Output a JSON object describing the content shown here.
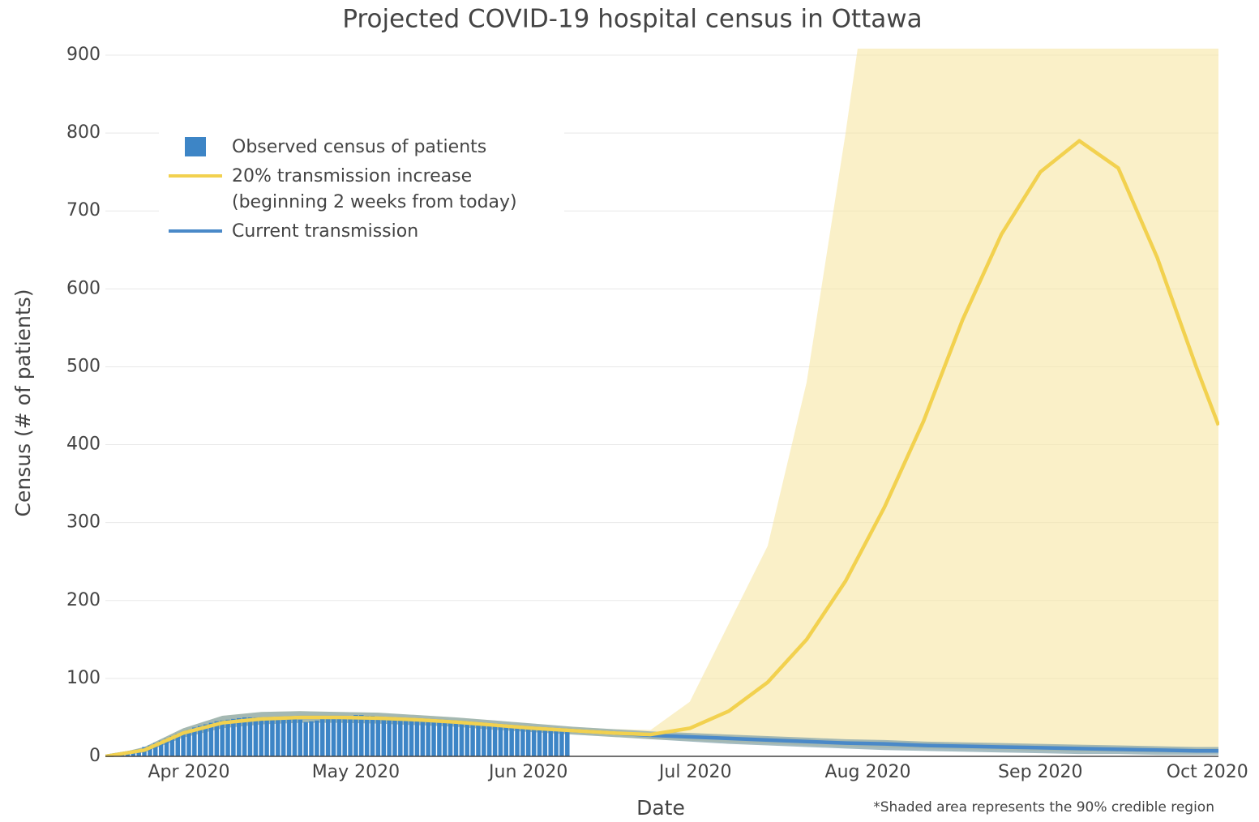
{
  "chart_data": {
    "type": "combo",
    "title": "Projected COVID-19 hospital census in Ottawa",
    "x_label": "Date",
    "y_label": "Census (# of patients)",
    "annotation": "*Shaded area represents the 90% credible region",
    "xlim": [
      "2020-03-17",
      "2020-10-03"
    ],
    "xticks": [
      {
        "value": "2020-04-01",
        "label": "Apr 2020"
      },
      {
        "value": "2020-05-01",
        "label": "May 2020"
      },
      {
        "value": "2020-06-01",
        "label": "Jun 2020"
      },
      {
        "value": "2020-07-01",
        "label": "Jul 2020"
      },
      {
        "value": "2020-08-01",
        "label": "Aug 2020"
      },
      {
        "value": "2020-09-01",
        "label": "Sep 2020"
      },
      {
        "value": "2020-10-01",
        "label": "Oct 2020"
      }
    ],
    "ylim": [
      0,
      900
    ],
    "yticks": [
      0,
      100,
      200,
      300,
      400,
      500,
      600,
      700,
      800,
      900
    ],
    "grid": true,
    "legend": "top-left",
    "series": [
      {
        "name": "Observed census of patients",
        "type": "bar",
        "color": "#3d85c6",
        "x": [
          "2020-03-20",
          "2020-03-21",
          "2020-03-22",
          "2020-03-23",
          "2020-03-24",
          "2020-03-25",
          "2020-03-26",
          "2020-03-27",
          "2020-03-28",
          "2020-03-29",
          "2020-03-30",
          "2020-03-31",
          "2020-04-01",
          "2020-04-02",
          "2020-04-03",
          "2020-04-04",
          "2020-04-05",
          "2020-04-06",
          "2020-04-07",
          "2020-04-08",
          "2020-04-09",
          "2020-04-10",
          "2020-04-11",
          "2020-04-12",
          "2020-04-13",
          "2020-04-14",
          "2020-04-15",
          "2020-04-16",
          "2020-04-17",
          "2020-04-18",
          "2020-04-19",
          "2020-04-20",
          "2020-04-21",
          "2020-04-22",
          "2020-04-23",
          "2020-04-24",
          "2020-04-25",
          "2020-04-26",
          "2020-04-27",
          "2020-04-28",
          "2020-04-29",
          "2020-04-30",
          "2020-05-01",
          "2020-05-02",
          "2020-05-03",
          "2020-05-04",
          "2020-05-05",
          "2020-05-06",
          "2020-05-07",
          "2020-05-08",
          "2020-05-09",
          "2020-05-10",
          "2020-05-11",
          "2020-05-12",
          "2020-05-13",
          "2020-05-14",
          "2020-05-15",
          "2020-05-16",
          "2020-05-17",
          "2020-05-18",
          "2020-05-19",
          "2020-05-20",
          "2020-05-21",
          "2020-05-22",
          "2020-05-23",
          "2020-05-24",
          "2020-05-25",
          "2020-05-26",
          "2020-05-27",
          "2020-05-28",
          "2020-05-29",
          "2020-05-30",
          "2020-05-31",
          "2020-06-01",
          "2020-06-02",
          "2020-06-03",
          "2020-06-04",
          "2020-06-05",
          "2020-06-06",
          "2020-06-07",
          "2020-06-08"
        ],
        "values": [
          3,
          5,
          7,
          9,
          12,
          14,
          17,
          20,
          23,
          26,
          29,
          31,
          34,
          37,
          39,
          41,
          43,
          45,
          46,
          47,
          48,
          49,
          50,
          50,
          50,
          50,
          50,
          50,
          50,
          50,
          50,
          49,
          47,
          44,
          45,
          46,
          48,
          50,
          51,
          51,
          52,
          52,
          53,
          53,
          52,
          52,
          51,
          50,
          49,
          48,
          47,
          47,
          48,
          49,
          48,
          47,
          46,
          45,
          44,
          43,
          42,
          42,
          41,
          41,
          40,
          40,
          39,
          39,
          38,
          38,
          37,
          37,
          36,
          36,
          35,
          35,
          34,
          34,
          33,
          33,
          32
        ]
      },
      {
        "name": "20% transmission increase\n(beginning 2 weeks from today)",
        "type": "line",
        "color": "#f2d14f",
        "band_color": "#f7e6a4",
        "x": [
          "2020-03-17",
          "2020-03-24",
          "2020-03-31",
          "2020-04-07",
          "2020-04-14",
          "2020-04-21",
          "2020-04-28",
          "2020-05-05",
          "2020-05-12",
          "2020-05-19",
          "2020-05-26",
          "2020-06-02",
          "2020-06-09",
          "2020-06-16",
          "2020-06-23",
          "2020-06-30",
          "2020-07-07",
          "2020-07-14",
          "2020-07-21",
          "2020-07-28",
          "2020-08-04",
          "2020-08-11",
          "2020-08-18",
          "2020-08-25",
          "2020-09-01",
          "2020-09-08",
          "2020-09-15",
          "2020-09-22",
          "2020-09-29",
          "2020-10-03"
        ],
        "values": [
          0,
          8,
          30,
          43,
          48,
          50,
          50,
          49,
          47,
          44,
          40,
          36,
          33,
          30,
          28,
          36,
          58,
          95,
          150,
          225,
          320,
          430,
          560,
          670,
          750,
          790,
          755,
          640,
          500,
          425
        ],
        "upper": [
          0,
          12,
          36,
          52,
          57,
          58,
          57,
          56,
          53,
          50,
          46,
          42,
          38,
          35,
          34,
          70,
          170,
          270,
          480,
          800,
          1150,
          1400,
          1600,
          1800,
          2000,
          2100,
          2200,
          2200,
          2200,
          2200
        ],
        "lower": [
          0,
          5,
          24,
          36,
          41,
          43,
          43,
          42,
          40,
          38,
          34,
          31,
          28,
          25,
          22,
          20,
          18,
          16,
          14,
          12,
          11,
          10,
          9,
          8,
          7,
          6,
          6,
          5,
          5,
          5
        ]
      },
      {
        "name": "Current transmission",
        "type": "line",
        "color": "#4a89c8",
        "band_color": "#7f9fa8",
        "x": [
          "2020-03-17",
          "2020-03-24",
          "2020-03-31",
          "2020-04-07",
          "2020-04-14",
          "2020-04-21",
          "2020-04-28",
          "2020-05-05",
          "2020-05-12",
          "2020-05-19",
          "2020-05-26",
          "2020-06-02",
          "2020-06-09",
          "2020-06-16",
          "2020-06-23",
          "2020-06-30",
          "2020-07-07",
          "2020-07-14",
          "2020-07-21",
          "2020-07-28",
          "2020-08-04",
          "2020-08-11",
          "2020-08-18",
          "2020-08-25",
          "2020-09-01",
          "2020-09-08",
          "2020-09-15",
          "2020-09-22",
          "2020-09-29",
          "2020-10-03"
        ],
        "values": [
          0,
          8,
          30,
          43,
          48,
          50,
          50,
          49,
          47,
          44,
          40,
          36,
          33,
          30,
          27,
          25,
          23,
          21,
          19,
          17,
          16,
          14,
          13,
          12,
          11,
          10,
          9,
          8,
          7,
          7
        ],
        "upper": [
          0,
          12,
          36,
          52,
          57,
          58,
          57,
          56,
          53,
          50,
          46,
          42,
          38,
          35,
          32,
          30,
          28,
          26,
          24,
          22,
          21,
          19,
          18,
          17,
          16,
          15,
          14,
          13,
          12,
          12
        ],
        "lower": [
          0,
          5,
          24,
          36,
          41,
          43,
          43,
          42,
          40,
          38,
          34,
          31,
          28,
          25,
          22,
          19,
          16,
          14,
          12,
          10,
          8,
          7,
          6,
          5,
          4,
          3,
          3,
          2,
          2,
          2
        ]
      }
    ]
  }
}
